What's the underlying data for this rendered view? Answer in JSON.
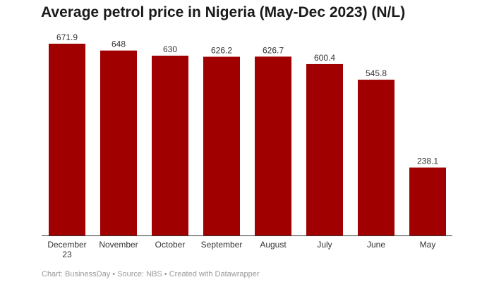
{
  "chart_data": {
    "type": "bar",
    "title": "Average petrol price in Nigeria (May-Dec 2023) (N/L)",
    "categories": [
      "December 23",
      "November",
      "October",
      "September",
      "August",
      "July",
      "June",
      "May"
    ],
    "category_lines": [
      [
        "December",
        "23"
      ],
      [
        "November"
      ],
      [
        "October"
      ],
      [
        "September"
      ],
      [
        "August"
      ],
      [
        "July"
      ],
      [
        "June"
      ],
      [
        "May"
      ]
    ],
    "values": [
      671.9,
      648,
      630,
      626.2,
      626.7,
      600.4,
      545.8,
      238.1
    ],
    "value_labels": [
      "671.9",
      "648",
      "630",
      "626.2",
      "626.7",
      "600.4",
      "545.8",
      "238.1"
    ],
    "ylim": [
      0,
      671.9
    ],
    "grid": false,
    "bar_color": "#a00000"
  },
  "footer": "Chart: BusinessDay • Source: NBS • Created with Datawrapper"
}
